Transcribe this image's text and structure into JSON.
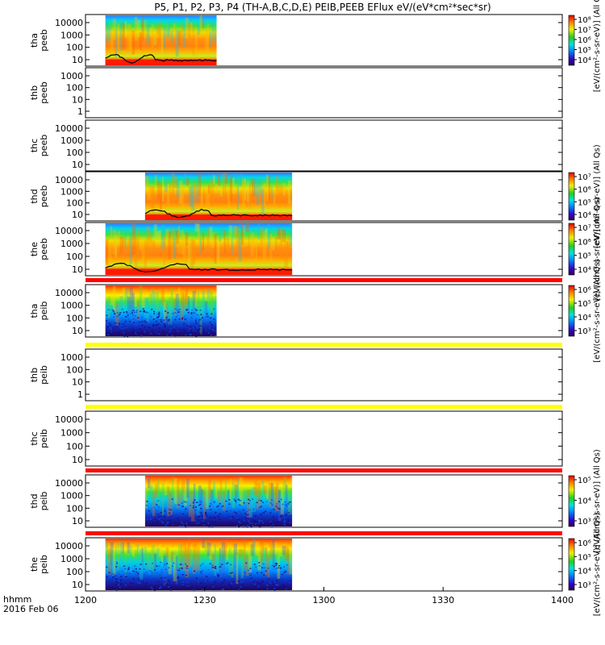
{
  "chart_data": {
    "type": "heatmap",
    "title": "P5, P1, P2, P3, P4 (TH-A,B,C,D,E) PEIB,PEEB EFlux eV/(eV*cm²*sec*sr)",
    "x_axis": {
      "ticks": [
        "1200",
        "1230",
        "1300",
        "1330",
        "1400"
      ],
      "corner_label": "hhmm",
      "date_label": "2016 Feb 06"
    },
    "colors": {
      "gap_red": "#ff0000",
      "gap_yellow": "#ffff00",
      "frame": "#000000",
      "trace": "#000000"
    },
    "panels": [
      {
        "id": "tha-peeb",
        "label": [
          "tha",
          "peeb"
        ],
        "yticks": [
          "10000",
          "1000",
          "100",
          "10"
        ],
        "data_start": "1205",
        "data_end": "1233",
        "style": "electron",
        "trace": true,
        "colorbar": {
          "ticks": [
            "10⁸",
            "10⁷",
            "10⁶",
            "10⁵",
            "10⁴"
          ],
          "label": "[eV/(cm²-s-sr-eV)] (All Qs)"
        }
      },
      {
        "id": "thb-peeb",
        "label": [
          "thb",
          "peeb"
        ],
        "yticks": [
          "1000",
          "100",
          "10",
          "1"
        ],
        "data_start": null,
        "data_end": null,
        "style": "none",
        "trace": false,
        "colorbar": null
      },
      {
        "id": "thc-peeb",
        "label": [
          "thc",
          "peeb"
        ],
        "yticks": [
          "10000",
          "1000",
          "100",
          "10"
        ],
        "data_start": null,
        "data_end": null,
        "style": "none",
        "trace": false,
        "colorbar": null
      },
      {
        "id": "thd-peeb",
        "label": [
          "thd",
          "peeb"
        ],
        "yticks": [
          "10000",
          "1000",
          "100",
          "10"
        ],
        "data_start": "1215",
        "data_end": "1252",
        "style": "electron",
        "trace": true,
        "colorbar": {
          "ticks": [
            "10⁷",
            "10⁶",
            "10⁵",
            "10⁴"
          ],
          "label": "[eV/(cm²-s-sr-eV)] (All Qs)"
        }
      },
      {
        "id": "the-peeb",
        "label": [
          "the",
          "peeb"
        ],
        "yticks": [
          "10000",
          "1000",
          "100",
          "10"
        ],
        "data_start": "1205",
        "data_end": "1252",
        "style": "electron",
        "trace": true,
        "colorbar": {
          "ticks": [
            "10⁷",
            "10⁶",
            "10⁵",
            "10⁴"
          ],
          "label": "[eV/(cm²-s-sr-eV)] (All Qs)"
        }
      },
      {
        "id": "tha-peib",
        "label": [
          "tha",
          "peib"
        ],
        "yticks": [
          "10000",
          "1000",
          "100",
          "10"
        ],
        "data_start": "1205",
        "data_end": "1233",
        "style": "ion",
        "trace": false,
        "colorbar": {
          "ticks": [
            "10⁶",
            "10⁵",
            "10⁴",
            "10³"
          ],
          "label": "[eV/(cm²-s-sr-eV)] (All Qs)"
        }
      },
      {
        "id": "thb-peib",
        "label": [
          "thb",
          "peib"
        ],
        "yticks": [
          "1000",
          "100",
          "10",
          "1"
        ],
        "data_start": null,
        "data_end": null,
        "style": "none",
        "trace": false,
        "colorbar": null
      },
      {
        "id": "thc-peib",
        "label": [
          "thc",
          "peib"
        ],
        "yticks": [
          "10000",
          "1000",
          "100",
          "10"
        ],
        "data_start": null,
        "data_end": null,
        "style": "none",
        "trace": false,
        "colorbar": null
      },
      {
        "id": "thd-peib",
        "label": [
          "thd",
          "peib"
        ],
        "yticks": [
          "10000",
          "1000",
          "100",
          "10"
        ],
        "data_start": "1215",
        "data_end": "1252",
        "style": "ion",
        "trace": false,
        "colorbar": {
          "ticks": [
            "10⁵",
            "10⁴",
            "10³"
          ],
          "label": "[eV/(cm²-s-sr-eV)] (All Qs)"
        }
      },
      {
        "id": "the-peib",
        "label": [
          "the",
          "peib"
        ],
        "yticks": [
          "10000",
          "1000",
          "100",
          "10"
        ],
        "data_start": "1205",
        "data_end": "1252",
        "style": "ion",
        "trace": false,
        "colorbar": {
          "ticks": [
            "10⁶",
            "10⁵",
            "10⁴",
            "10³"
          ],
          "label": "[eV/(cm²-s-sr-eV)] (All Qs)"
        }
      }
    ],
    "status_bars": [
      {
        "after_panel": "the-peeb",
        "color": "red"
      },
      {
        "after_panel": "tha-peib",
        "color": "yellow"
      },
      {
        "after_panel": "thb-peib",
        "color": "yellow"
      },
      {
        "after_panel": "thc-peib",
        "color": "red"
      },
      {
        "after_panel": "thd-peib",
        "color": "red"
      }
    ]
  }
}
